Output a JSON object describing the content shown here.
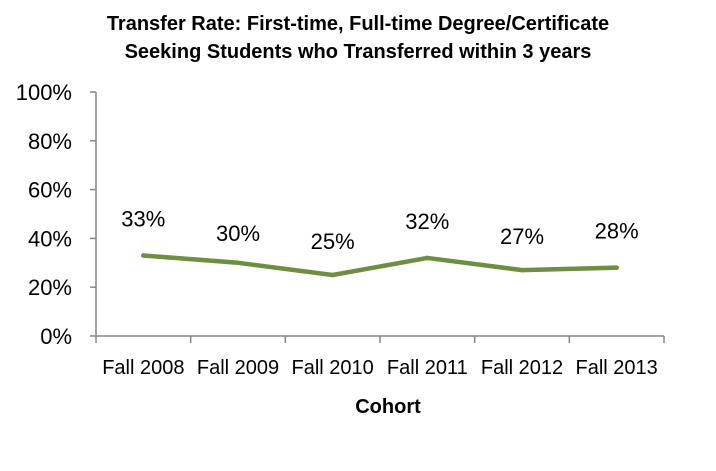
{
  "chart_data": {
    "type": "line",
    "title": "Transfer Rate: First-time, Full-time Degree/Certificate",
    "subtitle": "Seeking Students who Transferred within 3 years",
    "xlabel": "Cohort",
    "ylabel": "",
    "categories": [
      "Fall 2008",
      "Fall 2009",
      "Fall 2010",
      "Fall 2011",
      "Fall 2012",
      "Fall 2013"
    ],
    "series": [
      {
        "values": [
          33,
          30,
          25,
          32,
          27,
          28
        ],
        "data_labels": [
          "33%",
          "30%",
          "25%",
          "32%",
          "27%",
          "28%"
        ],
        "color": "#6e8f42"
      }
    ],
    "ylim": [
      0,
      100
    ],
    "yticks": [
      0,
      20,
      40,
      60,
      80,
      100
    ],
    "ytick_labels": [
      "0%",
      "20%",
      "40%",
      "60%",
      "80%",
      "100%"
    ],
    "grid": false,
    "legend": "none"
  }
}
